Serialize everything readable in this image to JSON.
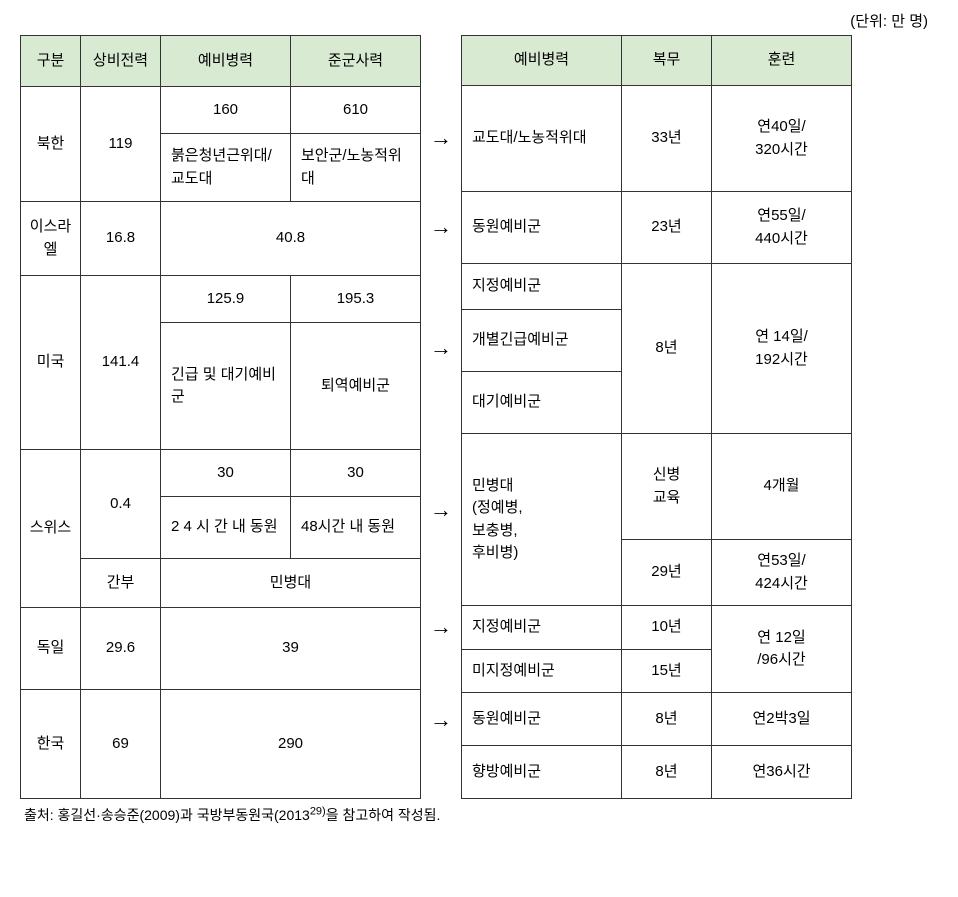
{
  "unit_label": "(단위: 만 명)",
  "left_headers": {
    "gubun": "구분",
    "sangbi": "상비전력",
    "yebi": "예비병력",
    "jungun": "준군사력"
  },
  "right_headers": {
    "yebi": "예비병력",
    "bokmu": "복무",
    "hunryun": "훈련"
  },
  "rows": {
    "nk": {
      "name": "북한",
      "sangbi": "119",
      "yebi_num": "160",
      "jungun_num": "610",
      "yebi_desc": "붉은청년근위대/교도대",
      "jungun_desc": "보안군/노농적위대",
      "r_yebi": "교도대/노농적위대",
      "r_bokmu": "33년",
      "r_hunryun": "연40일/\n320시간"
    },
    "israel": {
      "name": "이스라엘",
      "sangbi": "16.8",
      "yebi_jungun": "40.8",
      "r_yebi": "동원예비군",
      "r_bokmu": "23년",
      "r_hunryun": "연55일/\n440시간"
    },
    "us": {
      "name": "미국",
      "sangbi": "141.4",
      "yebi_num": "125.9",
      "jungun_num": "195.3",
      "yebi_desc": "긴급 및 대기예비군",
      "jungun_desc": "퇴역예비군",
      "r_yebi1": "지정예비군",
      "r_yebi2": "개별긴급예비군",
      "r_yebi3": "대기예비군",
      "r_bokmu": "8년",
      "r_hunryun": "연 14일/\n192시간"
    },
    "swiss": {
      "name": "스위스",
      "sangbi": "0.4",
      "yebi_num": "30",
      "jungun_num": "30",
      "yebi_desc": "2 4 시 간 내 동원",
      "jungun_desc": "48시간 내 동원",
      "sangbi2": "간부",
      "yebi_jungun2": "민병대",
      "r_yebi": "민병대\n(정예병,\n보충병,\n후비병)",
      "r_bokmu1": "신병\n교육",
      "r_hunryun1": "4개월",
      "r_bokmu2": "29년",
      "r_hunryun2": "연53일/\n424시간"
    },
    "germany": {
      "name": "독일",
      "sangbi": "29.6",
      "yebi_jungun": "39",
      "r_yebi1": "지정예비군",
      "r_bokmu1": "10년",
      "r_yebi2": "미지정예비군",
      "r_bokmu2": "15년",
      "r_hunryun": "연 12일\n/96시간"
    },
    "korea": {
      "name": "한국",
      "sangbi": "69",
      "yebi_jungun": "290",
      "r_yebi1": "동원예비군",
      "r_bokmu1": "8년",
      "r_hunryun1": "연2박3일",
      "r_yebi2": "향방예비군",
      "r_bokmu2": "8년",
      "r_hunryun2": "연36시간"
    }
  },
  "arrow": "→",
  "source_prefix": "출처: 홍길선·송승준(2009)과 국방부동원국(2013",
  "source_sup": "29)",
  "source_suffix": "을 참고하여 작성됨.",
  "colors": {
    "header_bg": "#d9ead3",
    "border": "#333333",
    "background": "#ffffff"
  }
}
